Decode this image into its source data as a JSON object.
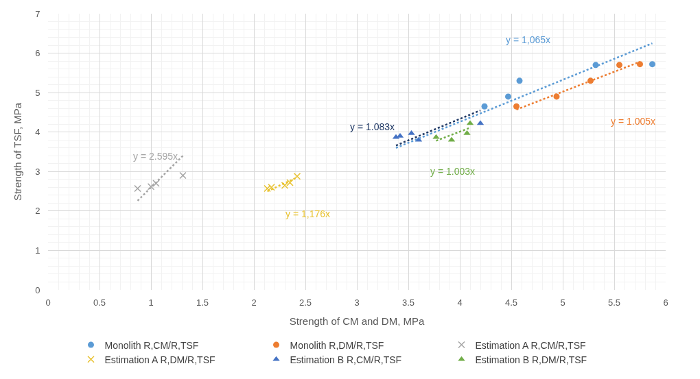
{
  "chart_data": {
    "type": "scatter",
    "xlabel": "Strength of CM and DM, MPa",
    "ylabel": "Strength of TSF, MPa",
    "xlim": [
      0,
      6
    ],
    "xticks": [
      0,
      0.5,
      1,
      1.5,
      2,
      2.5,
      3,
      3.5,
      4,
      4.5,
      5,
      5.5,
      6
    ],
    "ylim": [
      0,
      7
    ],
    "yticks": [
      0,
      1,
      2,
      3,
      4,
      5,
      6,
      7
    ],
    "grid": true,
    "legend": "bottom",
    "series": [
      {
        "name": "Monolith R,CM/R,TSF",
        "color": "#5b9bd5",
        "marker": "circle",
        "x": [
          4.24,
          4.47,
          4.58,
          5.32,
          5.87
        ],
        "values": [
          4.65,
          4.9,
          5.3,
          5.7,
          5.72
        ]
      },
      {
        "name": "Monolith R,DM/R,TSF",
        "color": "#ed7d31",
        "marker": "circle",
        "x": [
          4.55,
          4.94,
          5.27,
          5.55,
          5.75
        ],
        "values": [
          4.65,
          4.9,
          5.3,
          5.7,
          5.72
        ]
      },
      {
        "name": "Estimation A R,CM/R,TSF",
        "color": "#a5a5a5",
        "marker": "cross",
        "x": [
          0.87,
          1.0,
          1.05,
          1.31
        ],
        "values": [
          2.57,
          2.62,
          2.7,
          2.9
        ]
      },
      {
        "name": "Estimation A R,DM/R,TSF",
        "color": "#e8c230",
        "marker": "cross",
        "x": [
          2.13,
          2.17,
          2.3,
          2.35,
          2.42
        ],
        "values": [
          2.57,
          2.6,
          2.65,
          2.72,
          2.88
        ]
      },
      {
        "name": "Estimation B R,CM/R,TSF",
        "color": "#4472c4",
        "marker": "triangle",
        "x": [
          3.38,
          3.42,
          3.53,
          3.6,
          4.2
        ],
        "values": [
          3.87,
          3.9,
          3.97,
          3.8,
          4.22
        ]
      },
      {
        "name": "Estimation B R,DM/R,TSF",
        "color": "#70ad47",
        "marker": "triangle",
        "x": [
          3.77,
          3.92,
          4.07,
          4.1
        ],
        "values": [
          3.87,
          3.8,
          3.97,
          4.22
        ]
      },
      {
        "type": "line",
        "color": "#5b9bd5",
        "line_style": "dotted",
        "marker": "none",
        "x": [
          3.38,
          5.87
        ],
        "values": [
          3.6,
          6.25
        ]
      },
      {
        "type": "line",
        "color": "#ed7d31",
        "line_style": "dotted",
        "marker": "none",
        "x": [
          4.55,
          5.75
        ],
        "values": [
          4.57,
          5.78
        ]
      },
      {
        "type": "line",
        "color": "#a5a5a5",
        "line_style": "dotted",
        "marker": "none",
        "x": [
          0.87,
          1.31
        ],
        "values": [
          2.26,
          3.4
        ]
      },
      {
        "type": "line",
        "color": "#e8c230",
        "line_style": "dotted",
        "marker": "none",
        "x": [
          2.13,
          2.42
        ],
        "values": [
          2.5,
          2.85
        ]
      },
      {
        "type": "line",
        "color": "#1f3864",
        "line_style": "dotted",
        "marker": "none",
        "x": [
          3.38,
          4.2
        ],
        "values": [
          3.66,
          4.55
        ]
      },
      {
        "type": "line",
        "color": "#70ad47",
        "line_style": "dotted",
        "marker": "none",
        "x": [
          3.77,
          4.1
        ],
        "values": [
          3.78,
          4.11
        ]
      }
    ],
    "annotations": [
      "y = 1,065x",
      "y = 1.005x",
      "y = 2.595x",
      "y = 1,176x",
      "y = 1.083x",
      "y = 1.003x"
    ]
  }
}
